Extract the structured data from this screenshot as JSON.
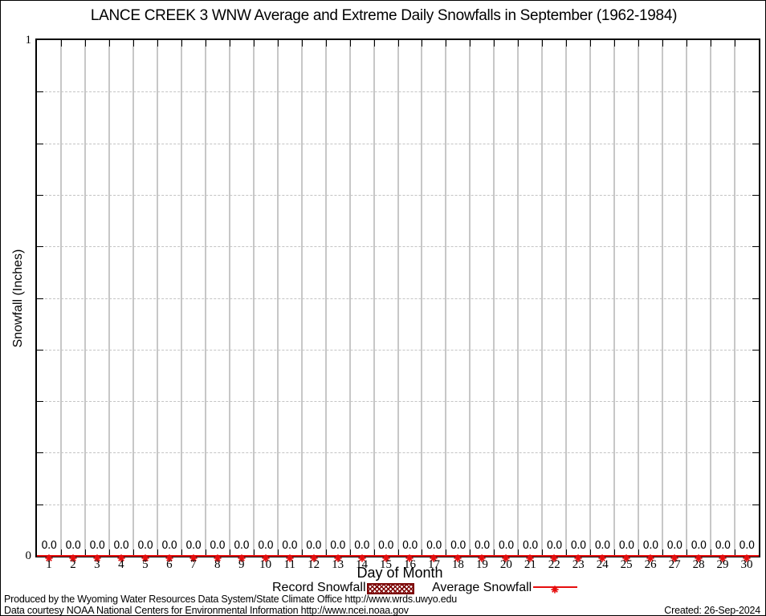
{
  "title": "LANCE CREEK 3 WNW Average and Extreme Daily Snowfalls in September (1962-1984)",
  "chart_data": {
    "type": "line",
    "title": "LANCE CREEK 3 WNW Average and Extreme Daily Snowfalls in September (1962-1984)",
    "xlabel": "Day of Month",
    "ylabel": "Snowfall (Inches)",
    "xlim": [
      0.5,
      30.5
    ],
    "ylim": [
      0,
      1
    ],
    "x": [
      1,
      2,
      3,
      4,
      5,
      6,
      7,
      8,
      9,
      10,
      11,
      12,
      13,
      14,
      15,
      16,
      17,
      18,
      19,
      20,
      21,
      22,
      23,
      24,
      25,
      26,
      27,
      28,
      29,
      30
    ],
    "series": [
      {
        "name": "Record Snowfall",
        "values": [
          0.0,
          0.0,
          0.0,
          0.0,
          0.0,
          0.0,
          0.0,
          0.0,
          0.0,
          0.0,
          0.0,
          0.0,
          0.0,
          0.0,
          0.0,
          0.0,
          0.0,
          0.0,
          0.0,
          0.0,
          0.0,
          0.0,
          0.0,
          0.0,
          0.0,
          0.0,
          0.0,
          0.0,
          0.0,
          0.0
        ]
      },
      {
        "name": "Average Snowfall",
        "values": [
          0.0,
          0.0,
          0.0,
          0.0,
          0.0,
          0.0,
          0.0,
          0.0,
          0.0,
          0.0,
          0.0,
          0.0,
          0.0,
          0.0,
          0.0,
          0.0,
          0.0,
          0.0,
          0.0,
          0.0,
          0.0,
          0.0,
          0.0,
          0.0,
          0.0,
          0.0,
          0.0,
          0.0,
          0.0,
          0.0
        ]
      }
    ],
    "point_labels": [
      "0.0",
      "0.0",
      "0.0",
      "0.0",
      "0.0",
      "0.0",
      "0.0",
      "0.0",
      "0.0",
      "0.0",
      "0.0",
      "0.0",
      "0.0",
      "0.0",
      "0.0",
      "0.0",
      "0.0",
      "0.0",
      "0.0",
      "0.0",
      "0.0",
      "0.0",
      "0.0",
      "0.0",
      "0.0",
      "0.0",
      "0.0",
      "0.0",
      "0.0",
      "0.0"
    ],
    "grid": true,
    "legend_position": "bottom"
  },
  "axis": {
    "y_max_label": "1",
    "y_min_label": "0"
  },
  "legend": {
    "record_label": "Record Snowfall",
    "average_label": "Average Snowfall"
  },
  "footer": {
    "line1": "Produced by the Wyoming Water Resources Data System/State Climate Office http://www.wrds.uwyo.edu",
    "line2": "Data courtesy NOAA National Centers for Environmental Information http://www.ncei.noaa.gov",
    "created": "Created: 26-Sep-2024"
  },
  "colors": {
    "series_red": "#e60d0d",
    "record_dark_red": "#7d0606",
    "grid_vertical": "#c7c7c7",
    "grid_horizontal": "#c4c4c4",
    "text": "#000000"
  }
}
